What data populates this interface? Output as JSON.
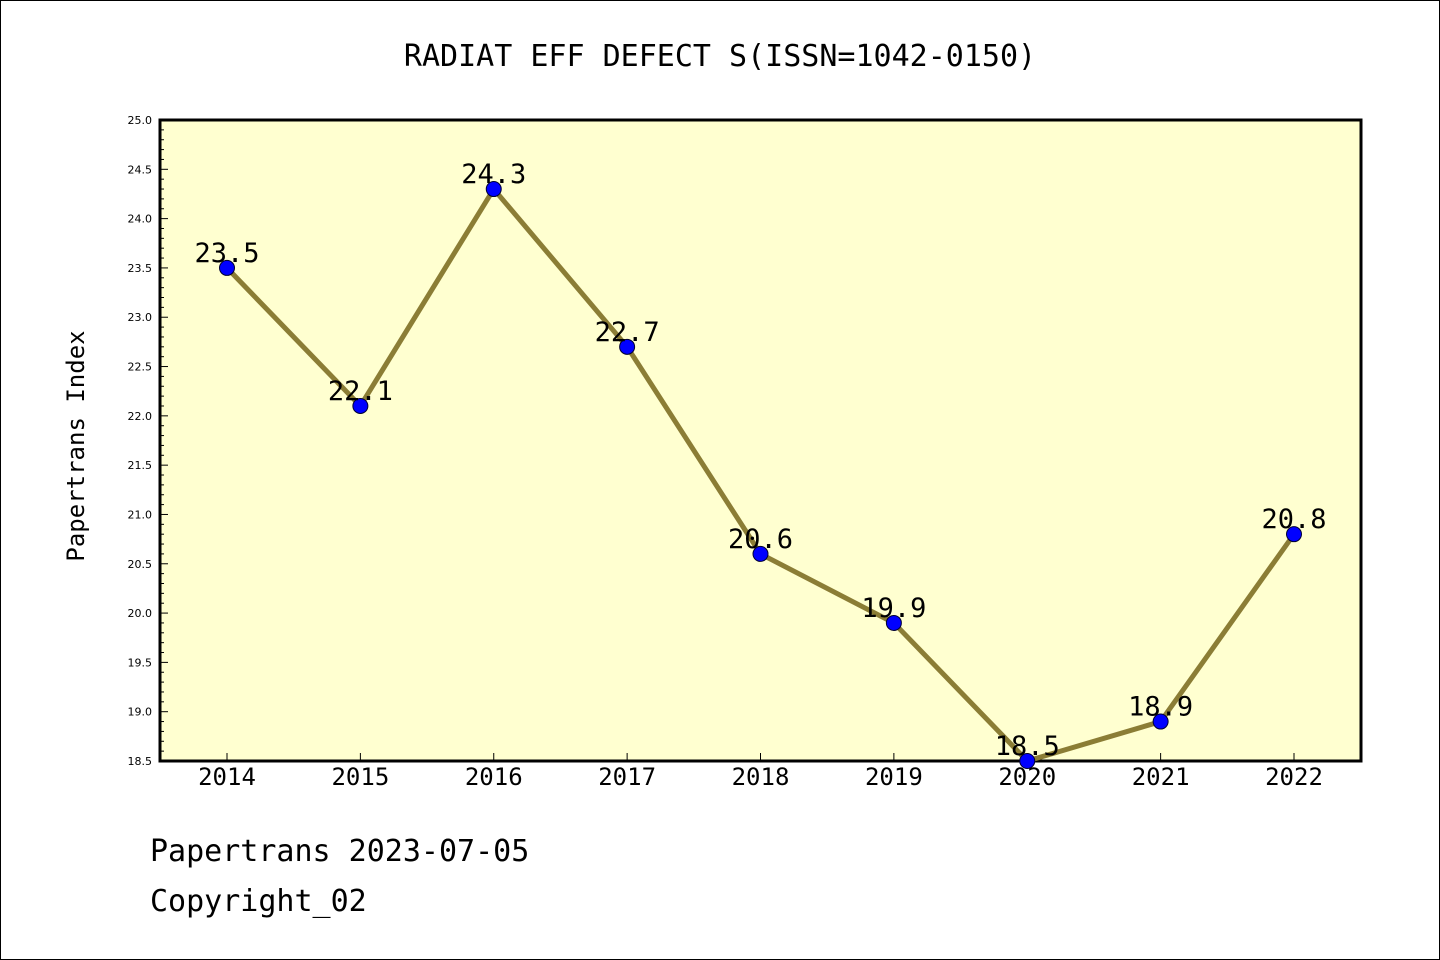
{
  "chart_data": {
    "type": "line",
    "title": "RADIAT EFF DEFECT S(ISSN=1042-0150)",
    "ylabel": "Papertrans Index",
    "xlabel": "",
    "categories": [
      "2014",
      "2015",
      "2016",
      "2017",
      "2018",
      "2019",
      "2020",
      "2021",
      "2022"
    ],
    "values": [
      23.5,
      22.1,
      24.3,
      22.7,
      20.6,
      19.9,
      18.5,
      18.9,
      20.8
    ],
    "data_labels": [
      "23.5",
      "22.1",
      "24.3",
      "22.7",
      "20.6",
      "19.9",
      "18.5",
      "18.9",
      "20.8"
    ],
    "ylim": [
      18.5,
      25.0
    ],
    "yticks": [
      "18.5",
      "19.0",
      "19.5",
      "20.0",
      "20.5",
      "21.0",
      "21.5",
      "22.0",
      "22.5",
      "23.0",
      "23.5",
      "24.0",
      "24.5",
      "25.0"
    ],
    "grid": false,
    "colors": {
      "plot_background": "#ffffd0",
      "line": "#8b7d35",
      "marker": "#0000ff"
    }
  },
  "footer": {
    "line1": "Papertrans 2023-07-05",
    "line2": "Copyright_02"
  }
}
